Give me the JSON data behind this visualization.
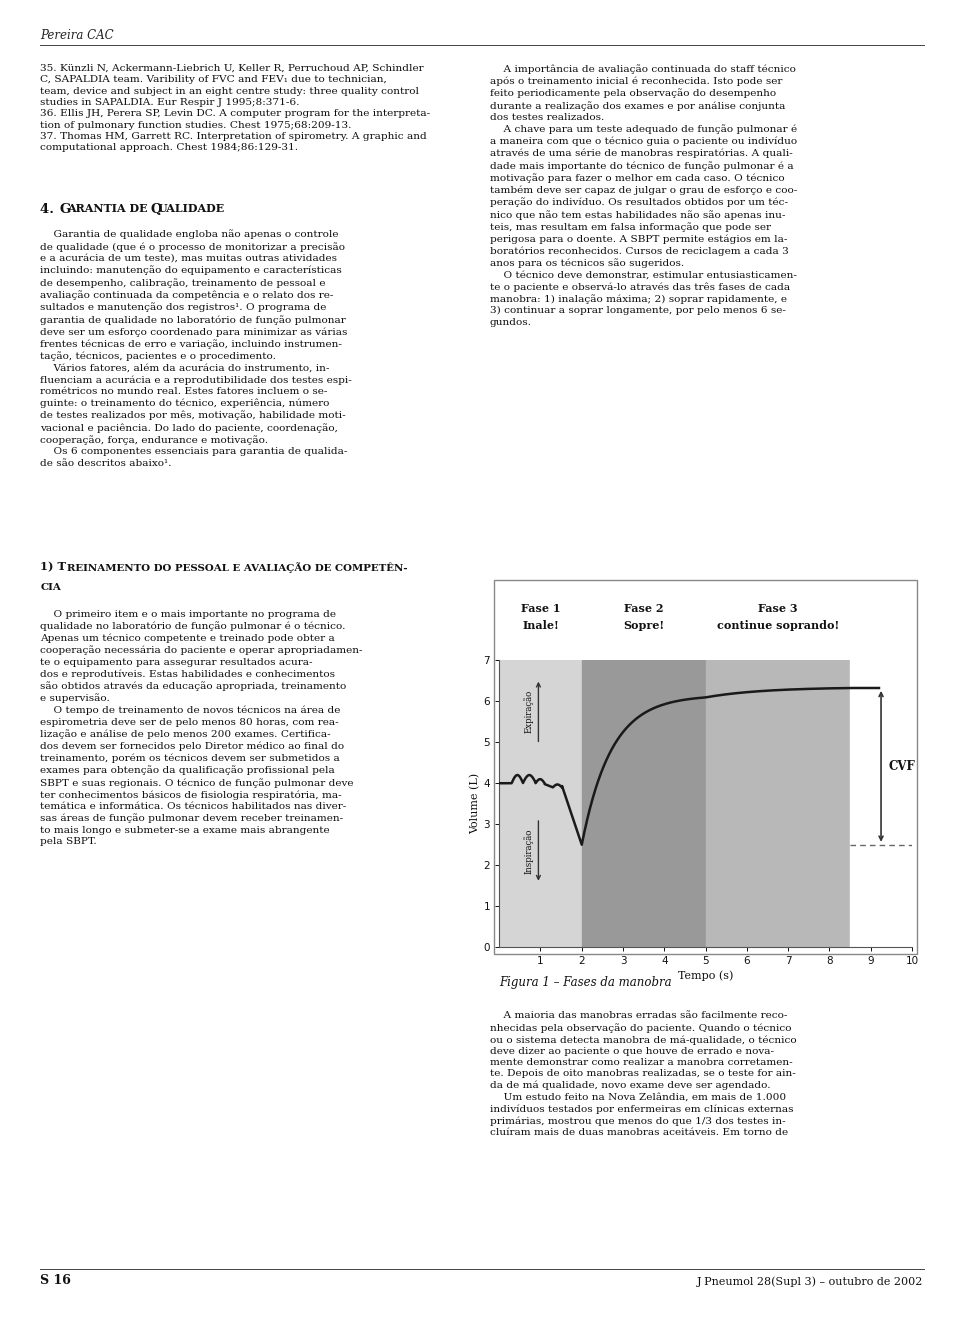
{
  "page_bg": "#ffffff",
  "header_text": "Pereira CAC",
  "footer_left": "S 16",
  "footer_right": "J Pneumol 28(Supl 3) – outubro de 2002",
  "figura_caption": "Figura 1 – Fases da manobra",
  "left_refs": "35. Künzli N, Ackermann-Liebrich U, Keller R, Perruchoud AP, Schindler\nC, SAPALDIA team. Varibility of FVC and FEV₁ due to technician,\nteam, device and subject in an eight centre study: three quality control\nstudies in SAPALDIA. Eur Respir J 1995;8:371-6.\n36. Ellis JH, Perera SP, Levin DC. A computer program for the interpreta-\ntion of pulmonary function studies. Chest 1975;68:209-13.\n37. Thomas HM, Garrett RC. Interpretation of spirometry. A graphic and\ncomputational approach. Chest 1984;86:129-31.",
  "section4_heading_num": "4. ",
  "section4_heading_cap": "G",
  "section4_heading_rest": "ARANTIA DE ",
  "section4_heading_cap2": "Q",
  "section4_heading_rest2": "UALIDADE",
  "section4_body": "    Garantia de qualidade engloba não apenas o controle\nde qualidade (que é o processo de monitorizar a precisão\ne a acurácia de um teste), mas muitas outras atividades\nincluindo: manutenção do equipamento e características\nde desempenho, calibração, treinamento de pessoal e\navaliação continuada da competência e o relato dos re-\nsultados e manutenção dos registros¹. O programa de\ngarantia de qualidade no laboratório de função pulmonar\ndeve ser um esforço coordenado para minimizar as várias\nfrentes técnicas de erro e variação, incluindo instrumen-\ntação, técnicos, pacientes e o procedimento.\n    Vários fatores, além da acurácia do instrumento, in-\nfluenciam a acurácia e a reprodutibilidade dos testes espi-\nrométricos no mundo real. Estes fatores incluem o se-\nguinte: o treinamento do técnico, experiência, número\nde testes realizados por mês, motivação, habilidade moti-\nvacional e paciência. Do lado do paciente, coordenação,\ncooperação, força, endurance e motivação.\n    Os 6 componentes essenciais para garantia de qualida-\nde são descritos abaixo¹.",
  "section1_heading": "1) T",
  "section1_heading_rest": "REINAMENTO DO PESSOAL E AVALIAÇÃO DE COMPÊTEN-",
  "section1_heading2": "CIA",
  "section1_body": "    O primeiro item e o mais importante no programa de\nqualidade no laboratório de função pulmonar é o técnico.\nApenas um técnico competente e treinado pode obter a\ncooperação necessária do paciente e operar apropriadamen-\nte o equipamento para assegurar resultados acura-\ndos e reprodutíveis. Estas habilidades e conhecimentos\nsão obtidos através da educação apropriada, treinamento\ne supervisão.\n    O tempo de treinamento de novos técnicos na área de\nespirometria deve ser de pelo menos 80 horas, com rea-\nlização e análise de pelo menos 200 exames. Certifica-\ndos devem ser fornecidos pelo Diretor médico ao final do\ntreinamento, porém os técnicos devem ser submetidos a\nexames para obtenção da qualificação profissional pela\nSBPT e suas regionais. O técnico de função pulmonar deve\nter conhecimentos básicos de fisiologia respiratória, ma-\ntemática e informática. Os técnicos habilitados nas diver-\nsas áreas de função pulmonar devem receber treinamen-\nto mais longo e submeter-se a exame mais abrangente\npela SBPT.",
  "right_top_body": "    A importância de avaliação continuada do staff técnico\napós o treinamento inicial é reconhecida. Isto pode ser\nfeito periodicamente pela observação do desempenho\ndurante a realização dos exames e por análise conjunta\ndos testes realizados.\n    A chave para um teste adequado de função pulmonar é\na maneira com que o técnico guia o paciente ou indivíduo\natravés de uma série de manobras respiratórias. A quali-\ndade mais importante do técnico de função pulmonar é a\nmotivação para fazer o melhor em cada caso. O técnico\ntambém deve ser capaz de julgar o grau de esforço e coo-\nperação do indivíduo. Os resultados obtidos por um téc-\nnico que não tem estas habilidades não são apenas inu-\nteis, mas resultam em falsa informação que pode ser\nperigosa para o doente. A SBPT permite estágios em la-\nboratórios reconhecidos. Cursos de reciclagem a cada 3\nanos para os técnicos são sugeridos.\n    O técnico deve demonstrar, estimular entusiasticamen-\nte o paciente e observá-lo através das três fases de cada\nmanobra: 1) inalação máxima; 2) soprar rapidamente, e\n3) continuar a soprar longamente, por pelo menos 6 se-\ngundos.",
  "right_bottom_body": "    A maioria das manobras erradas são facilmente reco-\nnhecidas pela observação do paciente. Quando o técnico\nou o sistema detecta manobra de má-qualidade, o técnico\ndeve dizer ao paciente o que houve de errado e nova-\nmente demonstrar como realizar a manobra corretamen-\nte. Depois de oito manobras realizadas, se o teste for ain-\nda de má qualidade, novo exame deve ser agendado.\n    Um estudo feito na Nova Zelândia, em mais de 1.000\nindivíduos testados por enfermeiras em clínicas externas\nprimárias, mostrou que menos do que 1/3 dos testes in-\ncluíram mais de duas manobras aceitáveis. Em torno de",
  "chart": {
    "fase1_label_line1": "Fase 1",
    "fase1_label_line2": "Inale!",
    "fase2_label_line1": "Fase 2",
    "fase2_label_line2": "Sopre!",
    "fase3_label_line1": "Fase 3",
    "fase3_label_line2": "continue soprando!",
    "xlabel": "Tempo (s)",
    "ylabel": "Volume (L)",
    "expiracao_label": "Expiração",
    "inspiracao_label": "Inspiração",
    "cvf_label": "CVF",
    "xlim": [
      0,
      10
    ],
    "ylim": [
      0,
      7
    ],
    "yticks": [
      0,
      1,
      2,
      3,
      4,
      5,
      6,
      7
    ],
    "xticks": [
      1,
      2,
      3,
      4,
      5,
      6,
      7,
      8,
      9,
      10
    ],
    "fase1_xend": 2.0,
    "fase2_xend": 5.0,
    "fase3_xend": 8.5,
    "fase1_color": "#d5d5d5",
    "fase2_color": "#999999",
    "fase3_color": "#b8b8b8",
    "curve_color": "#1a1a1a",
    "cvf_color": "#333333",
    "dashed_color": "#666666",
    "cvf_top_y": 6.2,
    "cvf_bot_y": 2.5,
    "cvf_x": 9.25,
    "outer_box_color": "#888888"
  }
}
